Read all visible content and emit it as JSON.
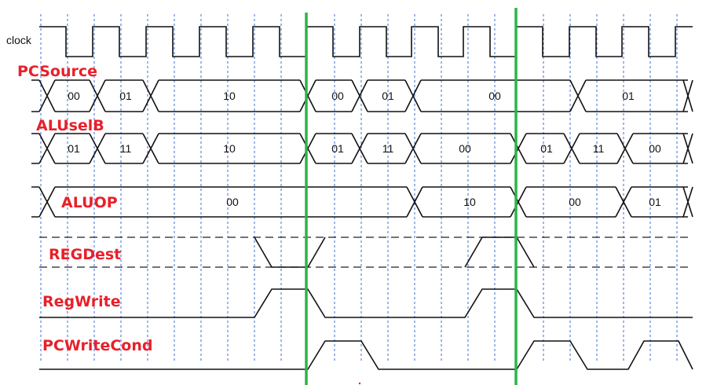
{
  "clock_label": "clock",
  "signals": [
    {
      "name": "PCSource",
      "values": [
        "00",
        "01",
        "10",
        "00",
        "01",
        "00",
        "01"
      ]
    },
    {
      "name": "ALUselB",
      "values": [
        "01",
        "11",
        "10",
        "01",
        "11",
        "00",
        "01",
        "11",
        "00"
      ]
    },
    {
      "name": "ALUOP",
      "values": [
        "00",
        "10",
        "00",
        "01"
      ]
    },
    {
      "name": "REGDest",
      "values": []
    },
    {
      "name": "RegWrite",
      "values": []
    },
    {
      "name": "PCWriteCond",
      "values": []
    }
  ],
  "colors": {
    "label": "#e8202a",
    "marker": "#2db34a",
    "gridline": "#3a6fd8",
    "trace": "#111111"
  }
}
